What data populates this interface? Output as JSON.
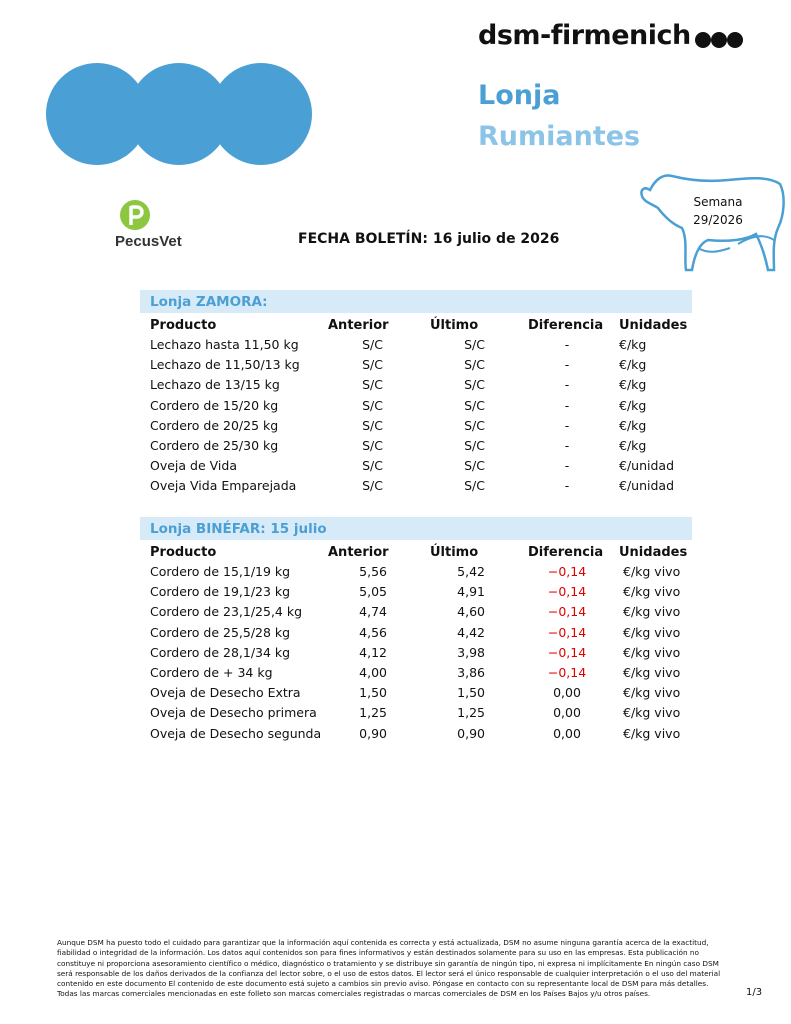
{
  "header": {
    "brand": "dsm-firmenich",
    "title": "Lonja",
    "subtitle": "Rumiantes",
    "week_label": "Semana",
    "week": "29/2026",
    "logo": "PecusVet",
    "date_line": "FECHA BOLETÍN: 16 julio de 2026"
  },
  "tables": [
    {
      "title": "Lonja ZAMORA:",
      "columns": [
        "Producto",
        "Anterior",
        "Último",
        "Diferencia",
        "Unidades"
      ],
      "rows": [
        [
          "Lechazo hasta 11,50 kg",
          "S/C",
          "S/C",
          "-",
          "€/kg"
        ],
        [
          "Lechazo de 11,50/13 kg",
          "S/C",
          "S/C",
          "-",
          "€/kg"
        ],
        [
          "Lechazo de 13/15 kg",
          "S/C",
          "S/C",
          "-",
          "€/kg"
        ],
        [
          "Cordero de 15/20 kg",
          "S/C",
          "S/C",
          "-",
          "€/kg"
        ],
        [
          "Cordero de 20/25 kg",
          "S/C",
          "S/C",
          "-",
          "€/kg"
        ],
        [
          "Cordero de 25/30 kg",
          "S/C",
          "S/C",
          "-",
          "€/kg"
        ],
        [
          "Oveja de Vida",
          "S/C",
          "S/C",
          "-",
          "€/unidad"
        ],
        [
          "Oveja Vida Emparejada",
          "S/C",
          "S/C",
          "-",
          "€/unidad"
        ]
      ]
    },
    {
      "title": "Lonja BINÉFAR: 15 julio",
      "columns": [
        "Producto",
        "Anterior",
        "Último",
        "Diferencia",
        "Unidades"
      ],
      "rows": [
        [
          "Cordero de 15,1/19 kg",
          "5,56",
          "5,42",
          "−0,14",
          "€/kg vivo"
        ],
        [
          "Cordero de 19,1/23 kg",
          "5,05",
          "4,91",
          "−0,14",
          "€/kg vivo"
        ],
        [
          "Cordero de 23,1/25,4 kg",
          "4,74",
          "4,60",
          "−0,14",
          "€/kg vivo"
        ],
        [
          "Cordero de 25,5/28 kg",
          "4,56",
          "4,42",
          "−0,14",
          "€/kg vivo"
        ],
        [
          "Cordero de 28,1/34 kg",
          "4,12",
          "3,98",
          "−0,14",
          "€/kg vivo"
        ],
        [
          "Cordero de + 34 kg",
          "4,00",
          "3,86",
          "−0,14",
          "€/kg vivo"
        ],
        [
          "Oveja de Desecho Extra",
          "1,50",
          "1,50",
          "0,00",
          "€/kg vivo"
        ],
        [
          "Oveja de Desecho primera",
          "1,25",
          "1,25",
          "0,00",
          "€/kg vivo"
        ],
        [
          "Oveja de Desecho segunda",
          "0,90",
          "0,90",
          "0,00",
          "€/kg vivo"
        ]
      ]
    }
  ],
  "footer": {
    "disclaimer": "Aunque DSM ha puesto todo el cuidado para garantizar que la información aquí contenida es correcta y está actualizada, DSM no asume ninguna garantía acerca de la exactitud, fiabilidad o integridad de la información. Los datos aquí contenidos son para fines informativos y están destinados solamente para su uso en las empresas. Esta publicación no constituye ni proporciona asesoramiento científico o médico, diagnóstico o tratamiento y se distribuye sin garantía de ningún tipo, ni expresa ni implícitamente En ningún caso DSM será responsable de los daños derivados de la confianza del lector sobre, o el uso de estos datos. El lector será el único responsable de cualquier interpretación o el uso del material contenido en este documento El contenido de este documento está sujeto a cambios sin previo aviso. Póngase en contacto con su representante local de DSM para más detalles. Todas las marcas comerciales mencionadas en este folleto son marcas comerciales registradas o marcas comerciales de DSM en los Países Bajos y/u otros países.",
    "page": "1/3"
  }
}
